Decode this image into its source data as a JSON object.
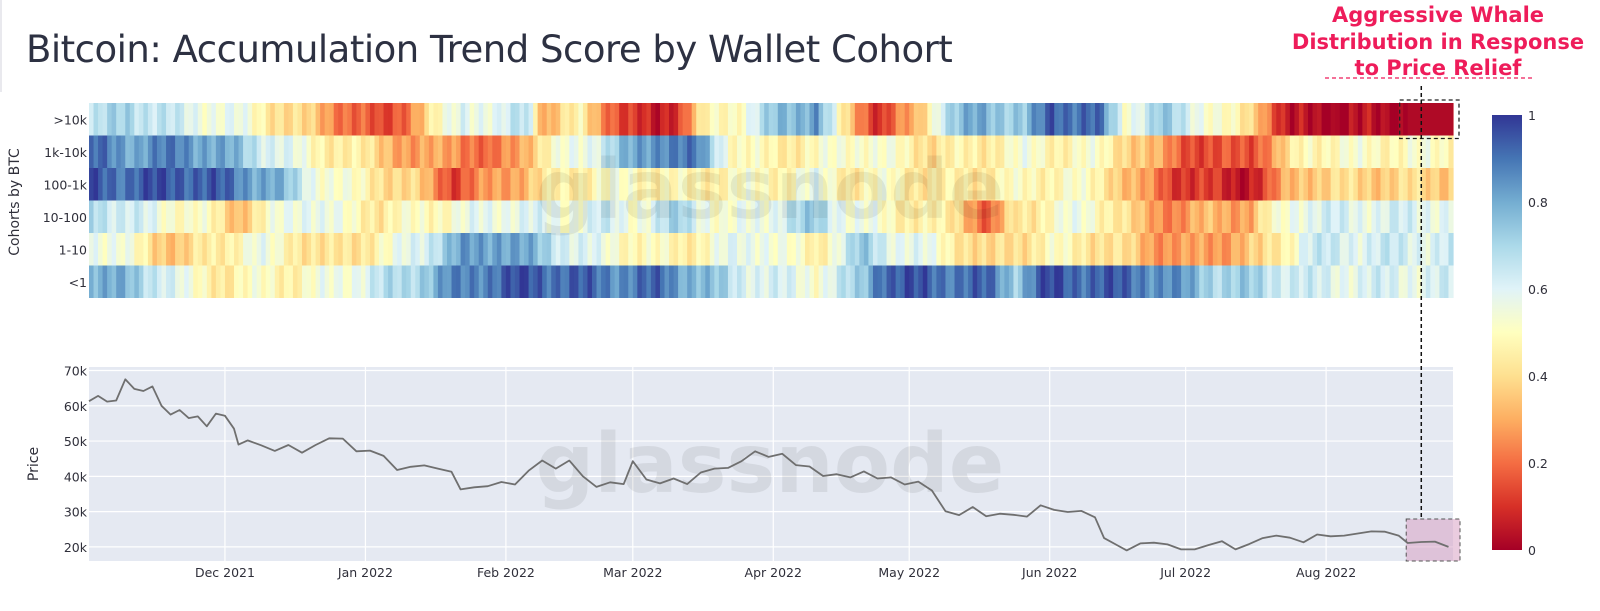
{
  "title": "Bitcoin: Accumulation Trend Score by Wallet Cohort",
  "annotation": {
    "lines": [
      "Aggressive Whale",
      "Distribution in Response",
      "to Price Relief"
    ],
    "color": "#ee1c5a"
  },
  "watermark": "glassnode",
  "chart_data": [
    {
      "type": "heatmap",
      "ylabel": "Cohorts by BTC",
      "rows": [
        ">10k",
        "1k-10k",
        "100-1k",
        "10-100",
        "1-10",
        "<1"
      ],
      "x_range": [
        "2021-11-01",
        "2022-08-29"
      ],
      "colorscale": {
        "min": 0,
        "max": 1,
        "stops": [
          "#a50026",
          "#d73027",
          "#f46d43",
          "#fdae61",
          "#fee090",
          "#ffffbf",
          "#e0f3f8",
          "#abd9e9",
          "#74add1",
          "#4575b4",
          "#313695"
        ],
        "ticks": [
          "0",
          "0.2",
          "0.4",
          "0.6",
          "0.8",
          "1"
        ]
      },
      "segments": {
        ">10k": [
          [
            0,
            0.62
          ],
          [
            8,
            0.72
          ],
          [
            20,
            0.6
          ],
          [
            32,
            0.55
          ],
          [
            40,
            0.45
          ],
          [
            48,
            0.35
          ],
          [
            58,
            0.2
          ],
          [
            64,
            0.1
          ],
          [
            70,
            0.25
          ],
          [
            78,
            0.5
          ],
          [
            82,
            0.62
          ],
          [
            90,
            0.55
          ],
          [
            96,
            0.7
          ],
          [
            100,
            0.3
          ],
          [
            108,
            0.45
          ],
          [
            118,
            0.1
          ],
          [
            124,
            0.05
          ],
          [
            130,
            0.15
          ],
          [
            136,
            0.45
          ],
          [
            144,
            0.55
          ],
          [
            152,
            0.75
          ],
          [
            160,
            0.85
          ],
          [
            166,
            0.4
          ],
          [
            174,
            0.1
          ],
          [
            182,
            0.3
          ],
          [
            188,
            0.68
          ],
          [
            196,
            0.8
          ],
          [
            206,
            0.72
          ],
          [
            212,
            0.95
          ],
          [
            222,
            0.9
          ],
          [
            228,
            0.55
          ],
          [
            236,
            0.72
          ],
          [
            244,
            0.6
          ],
          [
            252,
            0.45
          ],
          [
            258,
            0.35
          ],
          [
            264,
            0.02
          ],
          [
            272,
            0.02
          ]
        ],
        "1k-10k": [
          [
            0,
            0.9
          ],
          [
            10,
            0.82
          ],
          [
            20,
            0.88
          ],
          [
            32,
            0.75
          ],
          [
            40,
            0.62
          ],
          [
            48,
            0.5
          ],
          [
            56,
            0.45
          ],
          [
            66,
            0.35
          ],
          [
            72,
            0.25
          ],
          [
            80,
            0.3
          ],
          [
            88,
            0.15
          ],
          [
            94,
            0.3
          ],
          [
            100,
            0.45
          ],
          [
            110,
            0.6
          ],
          [
            118,
            0.75
          ],
          [
            126,
            0.9
          ],
          [
            134,
            0.85
          ],
          [
            142,
            0.5
          ],
          [
            150,
            0.45
          ],
          [
            160,
            0.48
          ],
          [
            170,
            0.55
          ],
          [
            176,
            0.5
          ],
          [
            186,
            0.42
          ],
          [
            196,
            0.45
          ],
          [
            206,
            0.52
          ],
          [
            214,
            0.48
          ],
          [
            222,
            0.5
          ],
          [
            228,
            0.42
          ],
          [
            234,
            0.3
          ],
          [
            240,
            0.2
          ],
          [
            248,
            0.12
          ],
          [
            256,
            0.18
          ],
          [
            262,
            0.3
          ],
          [
            268,
            0.5
          ]
        ],
        "100-1k": [
          [
            0,
            0.95
          ],
          [
            8,
            0.92
          ],
          [
            20,
            0.96
          ],
          [
            30,
            0.9
          ],
          [
            40,
            0.8
          ],
          [
            48,
            0.6
          ],
          [
            56,
            0.5
          ],
          [
            66,
            0.42
          ],
          [
            72,
            0.35
          ],
          [
            80,
            0.15
          ],
          [
            88,
            0.25
          ],
          [
            96,
            0.35
          ],
          [
            104,
            0.45
          ],
          [
            112,
            0.5
          ],
          [
            122,
            0.5
          ],
          [
            132,
            0.45
          ],
          [
            142,
            0.5
          ],
          [
            150,
            0.48
          ],
          [
            160,
            0.55
          ],
          [
            168,
            0.45
          ],
          [
            176,
            0.5
          ],
          [
            186,
            0.42
          ],
          [
            196,
            0.45
          ],
          [
            206,
            0.48
          ],
          [
            216,
            0.5
          ],
          [
            224,
            0.45
          ],
          [
            230,
            0.3
          ],
          [
            238,
            0.15
          ],
          [
            246,
            0.1
          ],
          [
            254,
            0.05
          ],
          [
            260,
            0.15
          ],
          [
            264,
            0.3
          ],
          [
            268,
            0.38
          ]
        ],
        "10-100": [
          [
            0,
            0.72
          ],
          [
            8,
            0.62
          ],
          [
            16,
            0.55
          ],
          [
            24,
            0.5
          ],
          [
            32,
            0.35
          ],
          [
            40,
            0.5
          ],
          [
            48,
            0.62
          ],
          [
            56,
            0.5
          ],
          [
            64,
            0.45
          ],
          [
            74,
            0.5
          ],
          [
            84,
            0.55
          ],
          [
            94,
            0.6
          ],
          [
            104,
            0.55
          ],
          [
            112,
            0.62
          ],
          [
            120,
            0.55
          ],
          [
            130,
            0.7
          ],
          [
            140,
            0.5
          ],
          [
            150,
            0.6
          ],
          [
            160,
            0.72
          ],
          [
            168,
            0.55
          ],
          [
            176,
            0.5
          ],
          [
            184,
            0.45
          ],
          [
            192,
            0.4
          ],
          [
            198,
            0.15
          ],
          [
            204,
            0.42
          ],
          [
            212,
            0.5
          ],
          [
            220,
            0.55
          ],
          [
            226,
            0.45
          ],
          [
            232,
            0.3
          ],
          [
            240,
            0.25
          ],
          [
            248,
            0.32
          ],
          [
            256,
            0.3
          ],
          [
            260,
            0.45
          ],
          [
            266,
            0.6
          ]
        ],
        "1-10": [
          [
            0,
            0.6
          ],
          [
            6,
            0.55
          ],
          [
            14,
            0.4
          ],
          [
            20,
            0.35
          ],
          [
            28,
            0.45
          ],
          [
            36,
            0.55
          ],
          [
            44,
            0.48
          ],
          [
            52,
            0.38
          ],
          [
            60,
            0.45
          ],
          [
            66,
            0.5
          ],
          [
            74,
            0.65
          ],
          [
            82,
            0.8
          ],
          [
            90,
            0.85
          ],
          [
            98,
            0.75
          ],
          [
            106,
            0.62
          ],
          [
            112,
            0.55
          ],
          [
            120,
            0.5
          ],
          [
            130,
            0.45
          ],
          [
            140,
            0.55
          ],
          [
            148,
            0.6
          ],
          [
            154,
            0.5
          ],
          [
            160,
            0.45
          ],
          [
            170,
            0.72
          ],
          [
            176,
            0.62
          ],
          [
            184,
            0.55
          ],
          [
            192,
            0.45
          ],
          [
            198,
            0.35
          ],
          [
            204,
            0.42
          ],
          [
            212,
            0.48
          ],
          [
            220,
            0.45
          ],
          [
            228,
            0.38
          ],
          [
            234,
            0.3
          ],
          [
            242,
            0.25
          ],
          [
            250,
            0.3
          ],
          [
            258,
            0.35
          ],
          [
            264,
            0.5
          ],
          [
            268,
            0.62
          ]
        ],
        "<1": [
          [
            0,
            0.82
          ],
          [
            8,
            0.75
          ],
          [
            16,
            0.65
          ],
          [
            22,
            0.5
          ],
          [
            30,
            0.45
          ],
          [
            38,
            0.5
          ],
          [
            46,
            0.48
          ],
          [
            54,
            0.55
          ],
          [
            62,
            0.62
          ],
          [
            70,
            0.7
          ],
          [
            78,
            0.82
          ],
          [
            86,
            0.9
          ],
          [
            96,
            0.95
          ],
          [
            106,
            0.92
          ],
          [
            116,
            0.88
          ],
          [
            126,
            0.9
          ],
          [
            134,
            0.78
          ],
          [
            142,
            0.65
          ],
          [
            150,
            0.6
          ],
          [
            160,
            0.55
          ],
          [
            170,
            0.7
          ],
          [
            174,
            0.95
          ],
          [
            186,
            0.92
          ],
          [
            198,
            0.9
          ],
          [
            204,
            0.75
          ],
          [
            210,
            0.95
          ],
          [
            222,
            0.93
          ],
          [
            232,
            0.9
          ],
          [
            240,
            0.82
          ],
          [
            248,
            0.72
          ],
          [
            256,
            0.7
          ],
          [
            264,
            0.65
          ],
          [
            270,
            0.6
          ]
        ]
      },
      "highlight": {
        "row": ">10k",
        "from": "2022-08-19",
        "to": "2022-08-29",
        "value": 0.02
      }
    },
    {
      "type": "line",
      "xlabel": "",
      "ylabel": "Price",
      "ylim": [
        16000,
        71000
      ],
      "yticks": [
        "20k",
        "30k",
        "40k",
        "50k",
        "60k",
        "70k"
      ],
      "ytick_values": [
        20000,
        30000,
        40000,
        50000,
        60000,
        70000
      ],
      "xticks": [
        "Dec 2021",
        "Jan 2022",
        "Feb 2022",
        "Mar 2022",
        "Apr 2022",
        "May 2022",
        "Jun 2022",
        "Jul 2022",
        "Aug 2022"
      ],
      "xtick_dates": [
        "2021-12-01",
        "2022-01-01",
        "2022-02-01",
        "2022-03-01",
        "2022-04-01",
        "2022-05-01",
        "2022-06-01",
        "2022-07-01",
        "2022-08-01"
      ],
      "x_range": [
        "2021-11-01",
        "2022-08-29"
      ],
      "line_color": "#6f6f6f",
      "series": [
        {
          "x": [
            "2021-11-01",
            "2021-11-03",
            "2021-11-05",
            "2021-11-07",
            "2021-11-09",
            "2021-11-11",
            "2021-11-13",
            "2021-11-15",
            "2021-11-17",
            "2021-11-19",
            "2021-11-21",
            "2021-11-23",
            "2021-11-25",
            "2021-11-27",
            "2021-11-29",
            "2021-12-01",
            "2021-12-03",
            "2021-12-04",
            "2021-12-06",
            "2021-12-09",
            "2021-12-12",
            "2021-12-15",
            "2021-12-18",
            "2021-12-21",
            "2021-12-24",
            "2021-12-27",
            "2021-12-30",
            "2022-01-02",
            "2022-01-05",
            "2022-01-08",
            "2022-01-11",
            "2022-01-14",
            "2022-01-17",
            "2022-01-20",
            "2022-01-22",
            "2022-01-25",
            "2022-01-28",
            "2022-01-31",
            "2022-02-03",
            "2022-02-06",
            "2022-02-09",
            "2022-02-12",
            "2022-02-15",
            "2022-02-18",
            "2022-02-21",
            "2022-02-24",
            "2022-02-27",
            "2022-03-01",
            "2022-03-04",
            "2022-03-07",
            "2022-03-10",
            "2022-03-13",
            "2022-03-16",
            "2022-03-19",
            "2022-03-22",
            "2022-03-25",
            "2022-03-28",
            "2022-03-31",
            "2022-04-03",
            "2022-04-06",
            "2022-04-09",
            "2022-04-12",
            "2022-04-15",
            "2022-04-18",
            "2022-04-21",
            "2022-04-24",
            "2022-04-27",
            "2022-04-30",
            "2022-05-03",
            "2022-05-06",
            "2022-05-09",
            "2022-05-12",
            "2022-05-15",
            "2022-05-18",
            "2022-05-21",
            "2022-05-24",
            "2022-05-27",
            "2022-05-30",
            "2022-06-02",
            "2022-06-05",
            "2022-06-08",
            "2022-06-11",
            "2022-06-13",
            "2022-06-16",
            "2022-06-18",
            "2022-06-21",
            "2022-06-24",
            "2022-06-27",
            "2022-06-30",
            "2022-07-03",
            "2022-07-06",
            "2022-07-09",
            "2022-07-12",
            "2022-07-15",
            "2022-07-18",
            "2022-07-21",
            "2022-07-24",
            "2022-07-27",
            "2022-07-30",
            "2022-08-02",
            "2022-08-05",
            "2022-08-08",
            "2022-08-11",
            "2022-08-14",
            "2022-08-17",
            "2022-08-19",
            "2022-08-22",
            "2022-08-25",
            "2022-08-28"
          ],
          "y": [
            61300,
            62800,
            61200,
            61500,
            67500,
            64800,
            64200,
            65500,
            60000,
            57500,
            58800,
            56500,
            57000,
            54200,
            57800,
            57200,
            53500,
            49000,
            50200,
            48800,
            47200,
            48900,
            46700,
            48900,
            50800,
            50700,
            47100,
            47300,
            45800,
            41800,
            42700,
            43100,
            42200,
            41300,
            36300,
            36900,
            37200,
            38400,
            37700,
            41600,
            44500,
            42200,
            44500,
            40000,
            37000,
            38300,
            37800,
            44300,
            39100,
            38000,
            39400,
            37800,
            41100,
            42200,
            42400,
            44300,
            47100,
            45500,
            46400,
            43200,
            42800,
            40100,
            40600,
            39700,
            41400,
            39400,
            39700,
            37700,
            38500,
            36000,
            30100,
            29000,
            31300,
            28700,
            29400,
            29100,
            28600,
            31800,
            30500,
            29900,
            30200,
            28400,
            22500,
            20400,
            19000,
            21000,
            21200,
            20700,
            19300,
            19300,
            20500,
            21600,
            19300,
            20800,
            22500,
            23200,
            22600,
            21300,
            23500,
            23000,
            23200,
            23800,
            24400,
            24300,
            23200,
            21100,
            21400,
            21500,
            20000
          ]
        }
      ],
      "highlight": {
        "from": "2022-08-20",
        "to": "2022-08-31",
        "color": "#d8a2c4"
      }
    }
  ]
}
